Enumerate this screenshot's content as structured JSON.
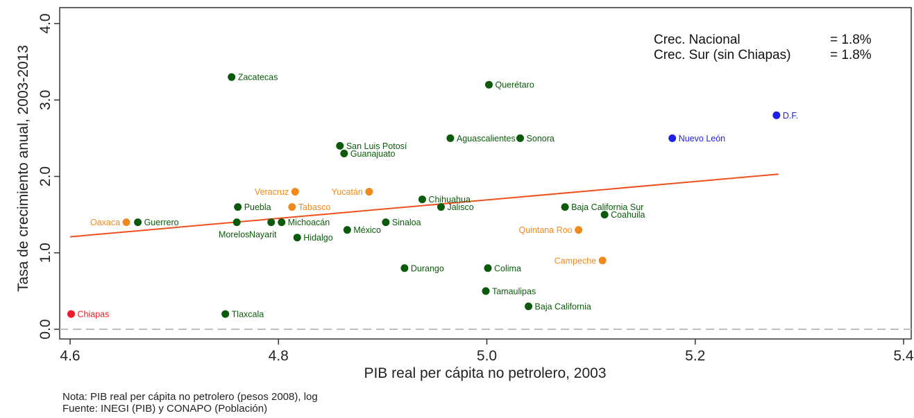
{
  "chart_data": {
    "type": "scatter",
    "xlabel": "PIB real per cápita no petrolero, 2003",
    "ylabel": "Tasa de crecimiento anual, 2003-2013",
    "xlim": [
      4.6,
      5.4
    ],
    "ylim": [
      0.0,
      4.0
    ],
    "x_ticks": [
      "4.6",
      "4.8",
      "5.0",
      "5.2",
      "5.4"
    ],
    "y_ticks": [
      "0.0",
      "1.0",
      "2.0",
      "3.0",
      "4.0"
    ],
    "colors": {
      "green": "#0b5a0b",
      "orange": "#f08a1c",
      "blue": "#1f1fe6",
      "red": "#ee1c25",
      "trend": "#f0501e",
      "zero_line": "#bfbfbf"
    },
    "stats": [
      {
        "label": "Crec. Nacional",
        "value": "= 1.8%"
      },
      {
        "label": "Crec. Sur (sin Chiapas)",
        "value": "= 1.8%"
      }
    ],
    "trend_line": {
      "x": [
        4.6,
        5.28
      ],
      "y": [
        1.21,
        2.03
      ]
    },
    "zero_reference": 0.0,
    "points": [
      {
        "name": "Zacatecas",
        "x": 4.755,
        "y": 3.3,
        "color": "green",
        "label_pos": "right"
      },
      {
        "name": "Querétaro",
        "x": 5.002,
        "y": 3.2,
        "color": "green",
        "label_pos": "right"
      },
      {
        "name": "D.F.",
        "x": 5.278,
        "y": 2.8,
        "color": "blue",
        "label_pos": "right"
      },
      {
        "name": "Nuevo León",
        "x": 5.178,
        "y": 2.5,
        "color": "blue",
        "label_pos": "right"
      },
      {
        "name": "Aguascalientes",
        "x": 4.965,
        "y": 2.5,
        "color": "green",
        "label_pos": "right"
      },
      {
        "name": "Sonora",
        "x": 5.032,
        "y": 2.5,
        "color": "green",
        "label_pos": "right"
      },
      {
        "name": "San Luis Potosí",
        "x": 4.859,
        "y": 2.4,
        "color": "green",
        "label_pos": "right"
      },
      {
        "name": "Guanajuato",
        "x": 4.863,
        "y": 2.3,
        "color": "green",
        "label_pos": "right"
      },
      {
        "name": "Veracruz",
        "x": 4.816,
        "y": 1.8,
        "color": "orange",
        "label_pos": "left"
      },
      {
        "name": "Yucatán",
        "x": 4.887,
        "y": 1.8,
        "color": "orange",
        "label_pos": "left"
      },
      {
        "name": "Chihuahua",
        "x": 4.938,
        "y": 1.7,
        "color": "green",
        "label_pos": "right"
      },
      {
        "name": "Puebla",
        "x": 4.761,
        "y": 1.6,
        "color": "green",
        "label_pos": "right"
      },
      {
        "name": "Tabasco",
        "x": 4.813,
        "y": 1.6,
        "color": "orange",
        "label_pos": "right"
      },
      {
        "name": "Jalisco",
        "x": 4.956,
        "y": 1.6,
        "color": "green",
        "label_pos": "right"
      },
      {
        "name": "Baja California Sur",
        "x": 5.075,
        "y": 1.6,
        "color": "green",
        "label_pos": "right"
      },
      {
        "name": "Coahuila",
        "x": 5.113,
        "y": 1.5,
        "color": "green",
        "label_pos": "right"
      },
      {
        "name": "Oaxaca",
        "x": 4.654,
        "y": 1.4,
        "color": "orange",
        "label_pos": "left"
      },
      {
        "name": "Guerrero",
        "x": 4.665,
        "y": 1.4,
        "color": "green",
        "label_pos": "right"
      },
      {
        "name": "Morelos",
        "x": 4.76,
        "y": 1.4,
        "color": "green",
        "label_pos": "below-left"
      },
      {
        "name": "Nayarit",
        "x": 4.793,
        "y": 1.4,
        "color": "green",
        "label_pos": "below-left"
      },
      {
        "name": "Michoacán",
        "x": 4.803,
        "y": 1.4,
        "color": "green",
        "label_pos": "right"
      },
      {
        "name": "Sinaloa",
        "x": 4.903,
        "y": 1.4,
        "color": "green",
        "label_pos": "right"
      },
      {
        "name": "México",
        "x": 4.866,
        "y": 1.3,
        "color": "green",
        "label_pos": "right"
      },
      {
        "name": "Quintana Roo",
        "x": 5.088,
        "y": 1.3,
        "color": "orange",
        "label_pos": "left"
      },
      {
        "name": "Hidalgo",
        "x": 4.818,
        "y": 1.2,
        "color": "green",
        "label_pos": "right"
      },
      {
        "name": "Campeche",
        "x": 5.111,
        "y": 0.9,
        "color": "orange",
        "label_pos": "left"
      },
      {
        "name": "Durango",
        "x": 4.921,
        "y": 0.8,
        "color": "green",
        "label_pos": "right"
      },
      {
        "name": "Colima",
        "x": 5.001,
        "y": 0.8,
        "color": "green",
        "label_pos": "right"
      },
      {
        "name": "Tamaulipas",
        "x": 4.999,
        "y": 0.5,
        "color": "green",
        "label_pos": "right"
      },
      {
        "name": "Baja California",
        "x": 5.04,
        "y": 0.3,
        "color": "green",
        "label_pos": "right"
      },
      {
        "name": "Tlaxcala",
        "x": 4.749,
        "y": 0.2,
        "color": "green",
        "label_pos": "right"
      },
      {
        "name": "Chiapas",
        "x": 4.601,
        "y": 0.2,
        "color": "red",
        "label_pos": "right"
      }
    ]
  },
  "notes": {
    "line1": "Nota: PIB real per cápita no petrolero (pesos 2008), log",
    "line2": "Fuente: INEGI (PIB) y CONAPO (Población)"
  }
}
